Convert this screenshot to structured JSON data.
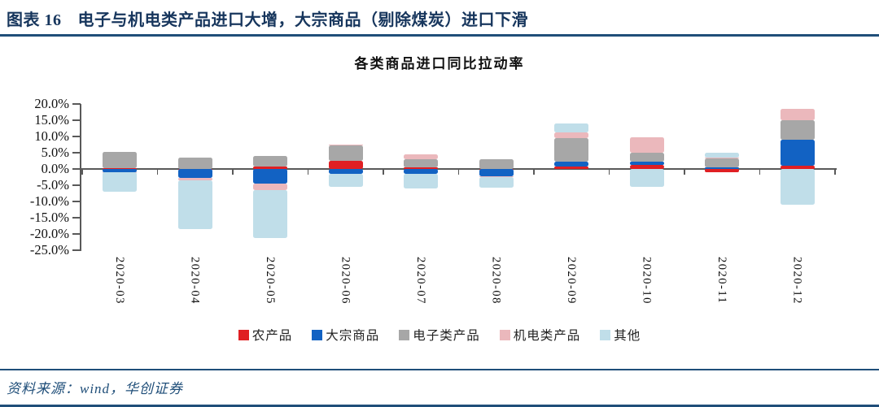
{
  "header": {
    "figure_label": "图表 16",
    "title": "电子与机电类产品进口大增，大宗商品（剔除煤炭）进口下滑"
  },
  "chart_data": {
    "type": "bar",
    "stacked": true,
    "title": "各类商品进口同比拉动率",
    "categories": [
      "2020-03",
      "2020-04",
      "2020-05",
      "2020-06",
      "2020-07",
      "2020-08",
      "2020-09",
      "2020-10",
      "2020-11",
      "2020-12"
    ],
    "series": [
      {
        "name": "农产品",
        "color": "#E01F23",
        "values": [
          0.3,
          0.1,
          0.7,
          2.6,
          0.5,
          0.1,
          0.8,
          1.2,
          -1.0,
          1.0
        ]
      },
      {
        "name": "大宗商品",
        "color": "#1262C3",
        "values": [
          -0.9,
          -2.7,
          -4.4,
          -1.6,
          -1.4,
          -2.3,
          1.5,
          1.0,
          0.5,
          8.1
        ]
      },
      {
        "name": "电子类产品",
        "color": "#A7A7A7",
        "values": [
          4.9,
          3.4,
          3.4,
          4.7,
          2.6,
          2.8,
          7.3,
          2.7,
          2.8,
          5.8
        ]
      },
      {
        "name": "机电类产品",
        "color": "#EBB8BC",
        "values": [
          -0.2,
          -0.8,
          -2.1,
          0.1,
          1.3,
          -0.1,
          1.6,
          4.8,
          0.1,
          3.6
        ]
      },
      {
        "name": "其他",
        "color": "#C0DEE9",
        "values": [
          -5.9,
          -15.0,
          -14.8,
          -3.9,
          -4.5,
          -3.3,
          2.9,
          -5.4,
          1.6,
          -10.9
        ]
      }
    ],
    "y_ticks": [
      "20.0%",
      "15.0%",
      "10.0%",
      "5.0%",
      "0.0%",
      "-5.0%",
      "-10.0%",
      "-15.0%",
      "-20.0%",
      "-25.0%"
    ],
    "ylim": [
      -25,
      20
    ],
    "gridlines": false,
    "legend_position": "bottom"
  },
  "footer": {
    "source": "资料来源：wind，华创证券"
  }
}
